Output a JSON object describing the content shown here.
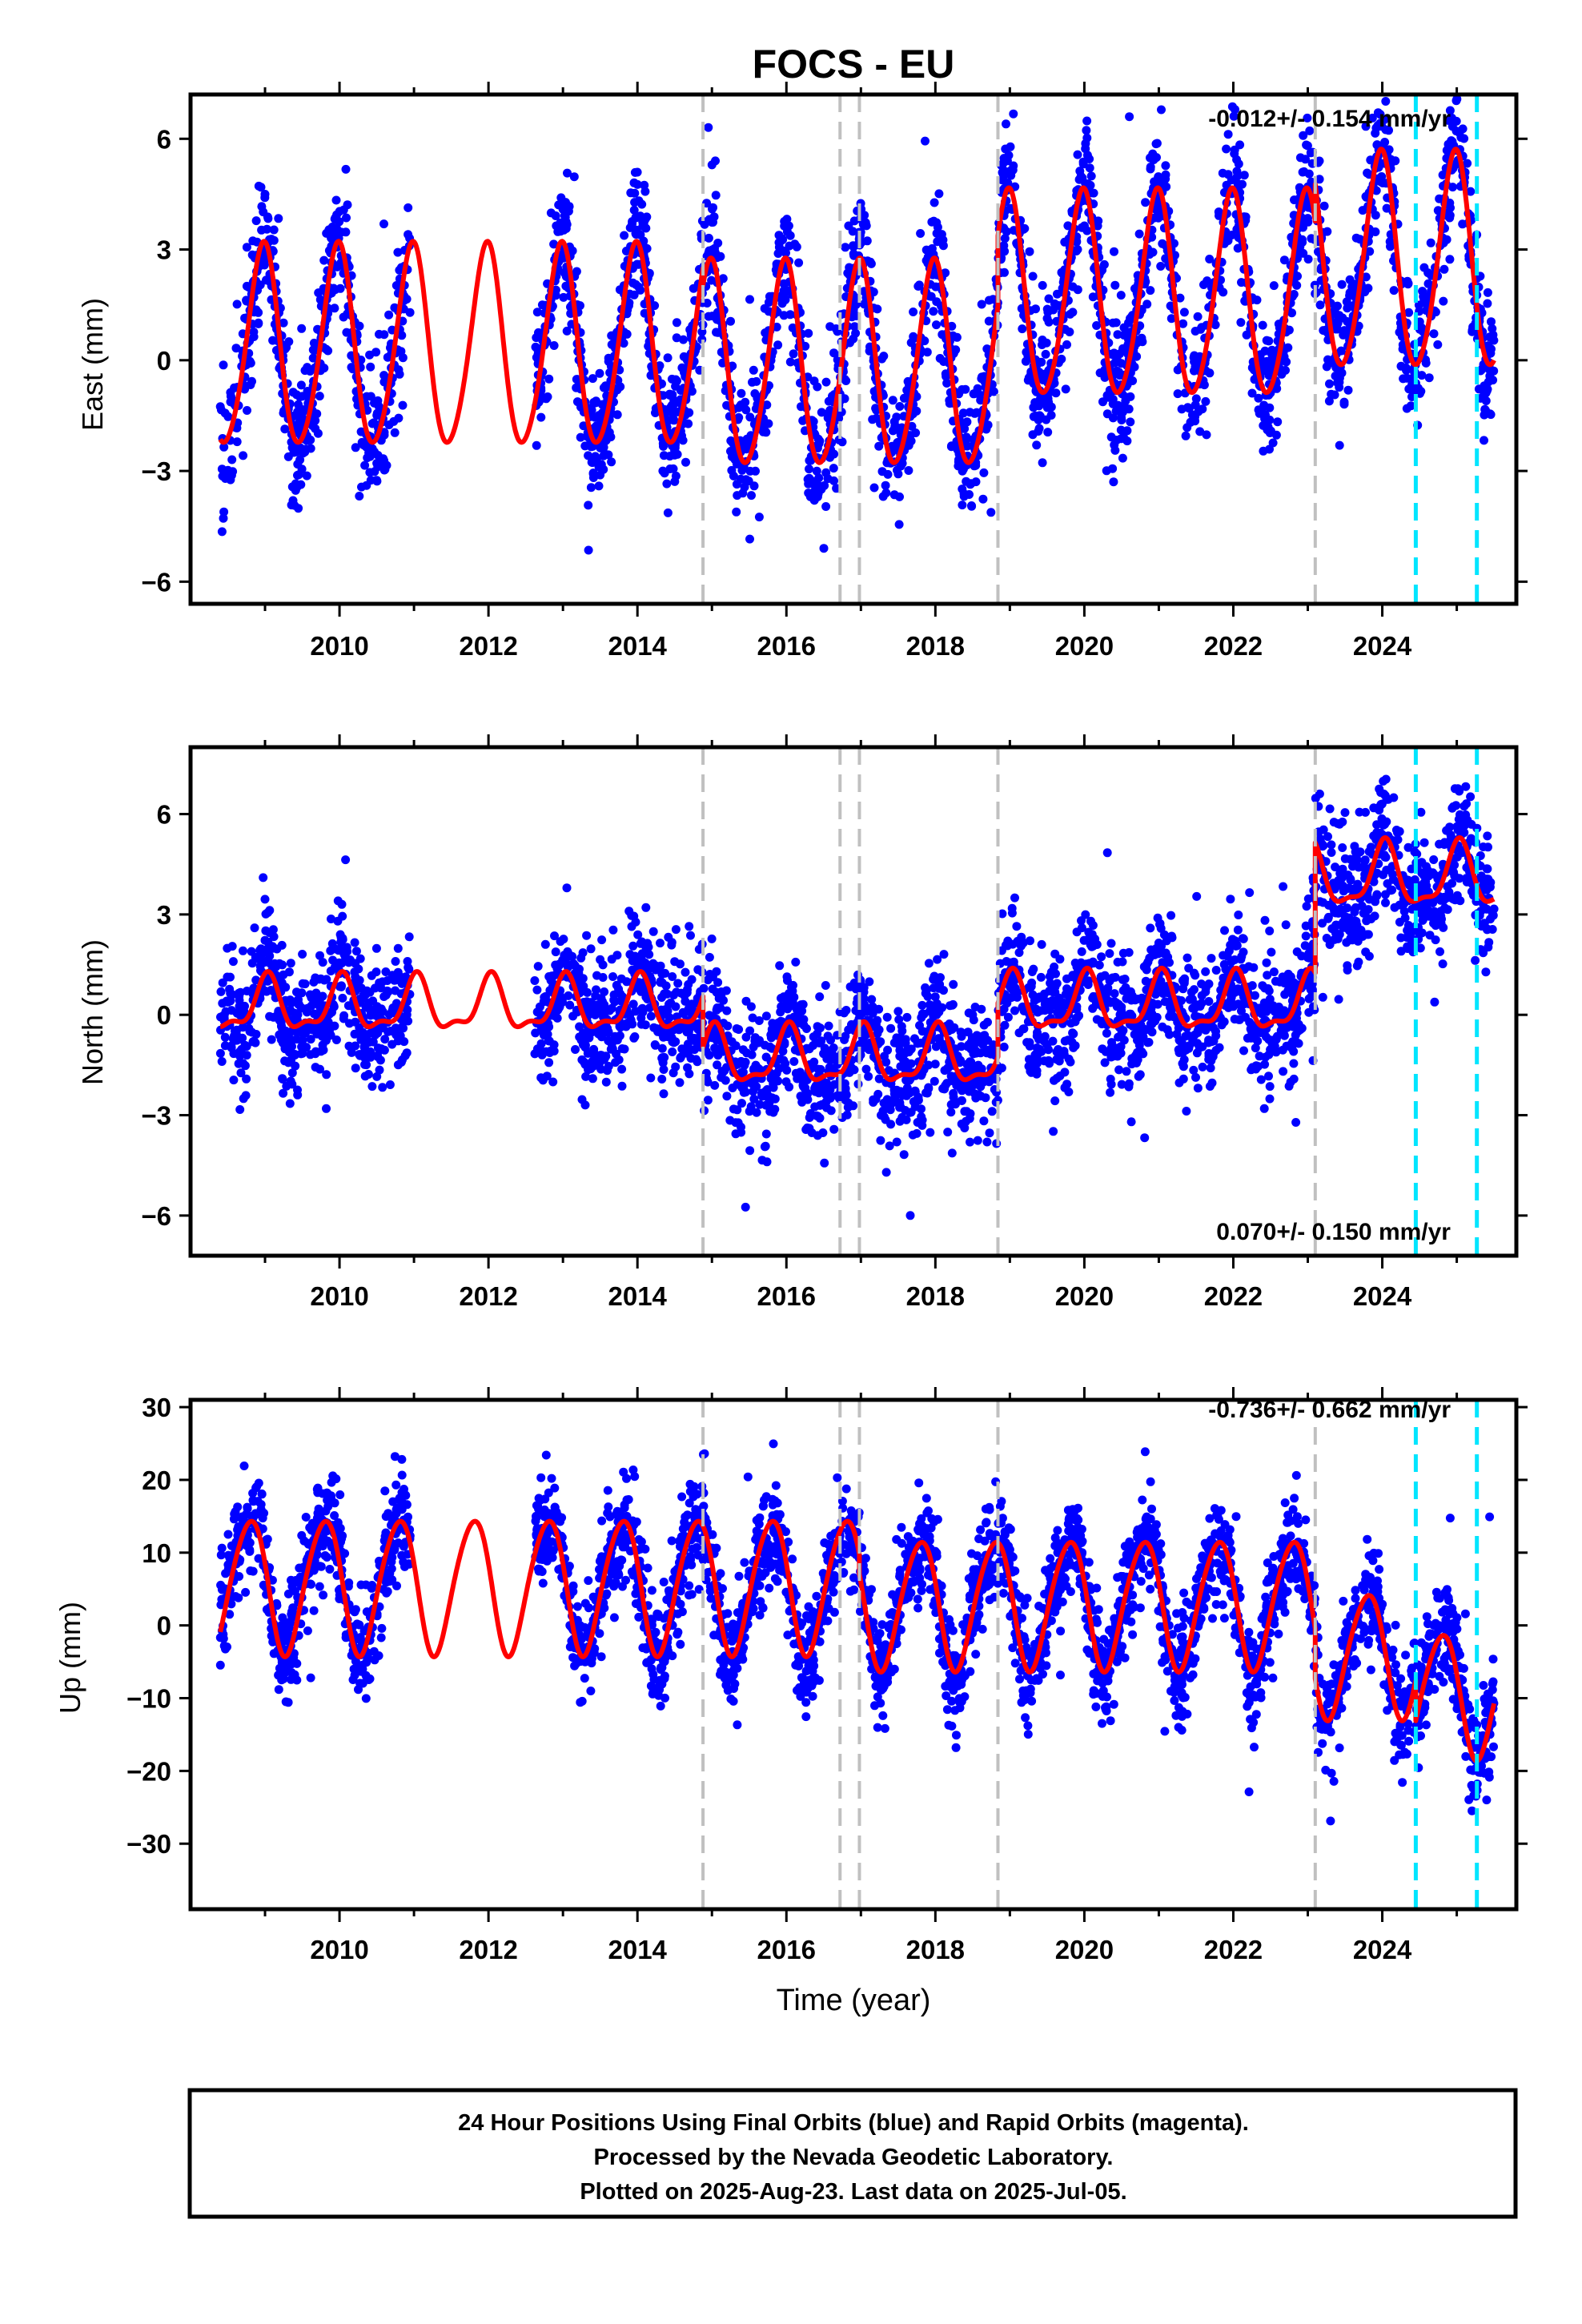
{
  "colors": {
    "final_orbits": "#0000ff",
    "model": "#ff0000",
    "offset_equipment": "#c0c0c0",
    "offset_earthquake": "#00e5ff",
    "frame": "#000000"
  },
  "chart_data": {
    "type": "scatter",
    "title": "FOCS - EU",
    "xlabel": "Time (year)",
    "xlim": [
      2008.0,
      2025.8
    ],
    "x_ticks": [
      2010,
      2012,
      2014,
      2016,
      2018,
      2020,
      2022,
      2024
    ],
    "x_tick_labels": [
      "2010",
      "2012",
      "2014",
      "2016",
      "2018",
      "2020",
      "2022",
      "2024"
    ],
    "vertical_offsets_gray": [
      2014.88,
      2016.72,
      2016.98,
      2018.84,
      2023.1
    ],
    "vertical_offsets_cyan": [
      2024.45,
      2025.27
    ],
    "data_segments": [
      [
        2008.4,
        2009.55
      ],
      [
        2009.55,
        2010.95
      ],
      [
        2012.62,
        2019.3
      ],
      [
        2019.3,
        2025.5
      ]
    ],
    "panels": [
      {
        "id": "east",
        "ylabel": "East (mm)",
        "ylim": [
          -6.6,
          7.2
        ],
        "y_ticks": [
          -6,
          -3,
          0,
          3,
          6
        ],
        "y_tick_labels": [
          "−6",
          "−3",
          "0",
          "3",
          "6"
        ],
        "rate_label": "-0.012+/- 0.154 mm/yr",
        "rate_position": "top-right",
        "series": [
          {
            "name": "",
            "kind": "points",
            "model": {
              "offset": 0.3,
              "trend": 0.0,
              "annual_amp": 2.6,
              "annual_phase": 1.75,
              "semiannual_amp": 0.45,
              "noise_sd": 0.9
            }
          },
          {
            "name": "",
            "kind": "line",
            "segments": [
              {
                "from": 2008.4,
                "to": 2014.88,
                "offset": 0.3,
                "annual_amp": 2.7,
                "annual_phase": 1.75
              },
              {
                "from": 2014.88,
                "to": 2018.84,
                "offset": -0.2,
                "annual_amp": 2.75,
                "annual_phase": 1.75
              },
              {
                "from": 2018.84,
                "to": 2023.1,
                "offset": 1.7,
                "annual_amp": 2.75,
                "annual_phase": 1.75
              },
              {
                "from": 2023.1,
                "to": 2025.5,
                "offset": 2.6,
                "annual_amp": 2.9,
                "annual_phase": 1.75
              }
            ]
          }
        ]
      },
      {
        "id": "north",
        "ylabel": "North (mm)",
        "ylim": [
          -7.2,
          8.0
        ],
        "y_ticks": [
          -6,
          -3,
          0,
          3,
          6
        ],
        "y_tick_labels": [
          "−6",
          "−3",
          "0",
          "3",
          "6"
        ],
        "rate_label": "0.070+/- 0.150 mm/yr",
        "rate_position": "bottom-right",
        "series": [
          {
            "name": "",
            "kind": "points",
            "model": {
              "offset": 0.0,
              "trend": 0.0,
              "annual_amp": 0.75,
              "annual_phase": 1.4,
              "semiannual_amp": 0.5,
              "noise_sd": 0.95
            }
          },
          {
            "name": "",
            "kind": "line",
            "segments": [
              {
                "from": 2008.4,
                "to": 2014.88,
                "offset": 0.25,
                "annual_amp": 0.75,
                "annual_phase": 1.4
              },
              {
                "from": 2014.88,
                "to": 2018.84,
                "offset": -1.3,
                "annual_amp": 0.8,
                "annual_phase": 1.4
              },
              {
                "from": 2018.84,
                "to": 2023.1,
                "offset": 0.3,
                "annual_amp": 0.8,
                "annual_phase": 1.4
              },
              {
                "from": 2023.1,
                "to": 2025.5,
                "offset": 4.1,
                "annual_amp": 0.9,
                "annual_phase": 1.4
              }
            ]
          }
        ]
      },
      {
        "id": "up",
        "ylabel": "Up (mm)",
        "ylim": [
          -39,
          31
        ],
        "y_ticks": [
          -30,
          -20,
          -10,
          0,
          10,
          20,
          30
        ],
        "y_tick_labels": [
          "−30",
          "−20",
          "−10",
          "0",
          "10",
          "20",
          "30"
        ],
        "rate_label": "-0.736+/- 0.662 mm/yr",
        "rate_position": "top-right",
        "series": [
          {
            "name": "",
            "kind": "points",
            "model": {
              "offset": 4.0,
              "trend": -0.74,
              "annual_amp": 9.0,
              "annual_phase": 2.9,
              "semiannual_amp": 1.5,
              "noise_sd": 3.5
            }
          },
          {
            "name": "",
            "kind": "line",
            "segments": [
              {
                "from": 2008.4,
                "to": 2016.98,
                "offset": 5.5,
                "annual_amp": 9.2,
                "annual_phase": 2.9
              },
              {
                "from": 2016.98,
                "to": 2023.1,
                "offset": 3.0,
                "annual_amp": 8.8,
                "annual_phase": 2.9
              },
              {
                "from": 2023.1,
                "to": 2024.45,
                "offset": -4.0,
                "annual_amp": 8.5,
                "annual_phase": 2.9
              },
              {
                "from": 2024.45,
                "to": 2025.5,
                "offset": -9.5,
                "annual_amp": 8.5,
                "annual_phase": 2.9
              }
            ]
          }
        ]
      }
    ]
  },
  "footer": {
    "line1": "24 Hour Positions Using Final Orbits (blue) and Rapid Orbits (magenta).",
    "line2": "Processed by the Nevada Geodetic Laboratory.",
    "line3": "Plotted on 2025-Aug-23. Last data on 2025-Jul-05."
  }
}
